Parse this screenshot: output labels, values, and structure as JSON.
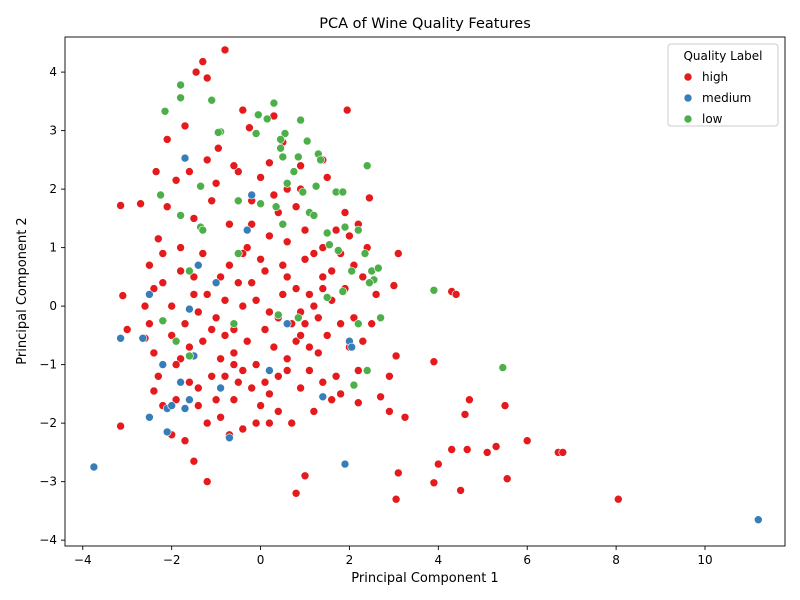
{
  "chart_data": {
    "type": "scatter",
    "title": "PCA of Wine Quality Features",
    "xlabel": "Principal Component 1",
    "ylabel": "Principal Component 2",
    "xlim": [
      -4.4,
      11.8
    ],
    "ylim": [
      -4.1,
      4.6
    ],
    "xticks": [
      -4,
      -2,
      0,
      2,
      4,
      6,
      8,
      10
    ],
    "yticks": [
      -4,
      -3,
      -2,
      -1,
      0,
      1,
      2,
      3,
      4
    ],
    "grid": false,
    "legend": {
      "title": "Quality Label",
      "placement": "top-right",
      "entries": [
        "high",
        "medium",
        "low"
      ]
    },
    "series": [
      {
        "name": "high",
        "color": "#e41a1c",
        "points": [
          [
            -3.15,
            1.72
          ],
          [
            -2.7,
            1.75
          ],
          [
            -3.1,
            0.18
          ],
          [
            -3.0,
            -0.4
          ],
          [
            -2.6,
            -0.55
          ],
          [
            -3.15,
            -2.05
          ],
          [
            -2.5,
            0.7
          ],
          [
            -2.4,
            0.3
          ],
          [
            -2.3,
            1.15
          ],
          [
            -2.1,
            2.85
          ],
          [
            -2.35,
            2.3
          ],
          [
            -2.4,
            -1.45
          ],
          [
            -2.2,
            -1.7
          ],
          [
            -2.0,
            -2.2
          ],
          [
            -1.7,
            -2.3
          ],
          [
            -1.5,
            -2.65
          ],
          [
            -1.2,
            -3.0
          ],
          [
            -1.3,
            4.18
          ],
          [
            -1.45,
            4.0
          ],
          [
            -1.2,
            3.9
          ],
          [
            -0.8,
            4.38
          ],
          [
            -1.7,
            3.08
          ],
          [
            -0.4,
            3.35
          ],
          [
            -0.25,
            3.05
          ],
          [
            0.3,
            3.25
          ],
          [
            1.95,
            3.35
          ],
          [
            0.5,
            2.8
          ],
          [
            1.4,
            2.5
          ],
          [
            1.5,
            2.2
          ],
          [
            -1.9,
            2.15
          ],
          [
            -0.95,
            2.7
          ],
          [
            -0.5,
            2.3
          ],
          [
            0.2,
            2.45
          ],
          [
            0.9,
            2.4
          ],
          [
            2.45,
            1.85
          ],
          [
            3.1,
            0.9
          ],
          [
            3.0,
            0.35
          ],
          [
            2.5,
            -0.3
          ],
          [
            3.05,
            -0.85
          ],
          [
            2.9,
            -1.2
          ],
          [
            2.7,
            -1.55
          ],
          [
            2.9,
            -1.8
          ],
          [
            3.25,
            -1.9
          ],
          [
            2.2,
            -1.65
          ],
          [
            1.0,
            -2.9
          ],
          [
            0.8,
            -3.2
          ],
          [
            0.7,
            -2.0
          ],
          [
            3.05,
            -3.3
          ],
          [
            3.1,
            -2.85
          ],
          [
            3.9,
            -0.95
          ],
          [
            3.9,
            -3.02
          ],
          [
            4.0,
            -2.7
          ],
          [
            4.3,
            -2.45
          ],
          [
            4.5,
            -3.15
          ],
          [
            4.6,
            -1.85
          ],
          [
            4.65,
            -2.45
          ],
          [
            4.7,
            -1.6
          ],
          [
            5.1,
            -2.5
          ],
          [
            5.3,
            -2.4
          ],
          [
            5.5,
            -1.7
          ],
          [
            5.55,
            -2.95
          ],
          [
            6.0,
            -2.3
          ],
          [
            6.7,
            -2.5
          ],
          [
            6.8,
            -2.5
          ],
          [
            8.05,
            -3.3
          ],
          [
            4.3,
            0.25
          ],
          [
            4.4,
            0.2
          ],
          [
            -1.8,
            1.0
          ],
          [
            -1.5,
            0.5
          ],
          [
            -1.2,
            0.2
          ],
          [
            -1.0,
            -0.2
          ],
          [
            -0.8,
            -0.5
          ],
          [
            -0.6,
            -0.8
          ],
          [
            -0.4,
            -1.1
          ],
          [
            -0.2,
            -1.4
          ],
          [
            0.0,
            -1.7
          ],
          [
            0.2,
            -1.5
          ],
          [
            0.4,
            -1.2
          ],
          [
            0.6,
            -0.9
          ],
          [
            0.8,
            -0.6
          ],
          [
            1.0,
            -0.3
          ],
          [
            1.2,
            0.0
          ],
          [
            1.4,
            0.3
          ],
          [
            1.6,
            0.6
          ],
          [
            1.8,
            0.9
          ],
          [
            2.0,
            1.2
          ],
          [
            -2.0,
            -0.5
          ],
          [
            -1.8,
            -0.9
          ],
          [
            -1.6,
            -1.3
          ],
          [
            -1.4,
            -1.7
          ],
          [
            -1.2,
            -2.0
          ],
          [
            -1.0,
            -1.6
          ],
          [
            -0.8,
            -1.2
          ],
          [
            -0.6,
            -0.4
          ],
          [
            -0.4,
            0.0
          ],
          [
            -0.2,
            0.4
          ],
          [
            0.0,
            0.8
          ],
          [
            0.2,
            1.2
          ],
          [
            0.4,
            1.6
          ],
          [
            0.6,
            2.0
          ],
          [
            0.8,
            1.7
          ],
          [
            1.0,
            1.3
          ],
          [
            1.2,
            0.9
          ],
          [
            1.4,
            0.5
          ],
          [
            1.6,
            0.1
          ],
          [
            1.8,
            -0.3
          ],
          [
            2.0,
            -0.7
          ],
          [
            2.2,
            -1.1
          ],
          [
            -2.2,
            0.4
          ],
          [
            -2.0,
            0.0
          ],
          [
            -1.7,
            -0.3
          ],
          [
            -1.3,
            -0.6
          ],
          [
            -0.9,
            -0.9
          ],
          [
            -0.5,
            -1.3
          ],
          [
            -0.1,
            -1.0
          ],
          [
            0.3,
            -0.7
          ],
          [
            0.7,
            -0.3
          ],
          [
            1.1,
            0.2
          ],
          [
            1.5,
            -0.5
          ],
          [
            1.9,
            0.3
          ],
          [
            -1.5,
            1.5
          ],
          [
            -1.1,
            1.8
          ],
          [
            -0.7,
            1.4
          ],
          [
            -0.3,
            1.0
          ],
          [
            0.1,
            0.6
          ],
          [
            0.5,
            0.2
          ],
          [
            0.9,
            -0.1
          ],
          [
            1.3,
            -0.8
          ],
          [
            1.7,
            -1.2
          ],
          [
            2.1,
            -0.2
          ],
          [
            -2.4,
            -0.8
          ],
          [
            -1.9,
            -1.6
          ],
          [
            -1.4,
            -0.1
          ],
          [
            -0.9,
            0.5
          ],
          [
            -0.4,
            0.9
          ],
          [
            0.1,
            -0.4
          ],
          [
            0.6,
            0.5
          ],
          [
            1.1,
            -1.1
          ],
          [
            1.6,
            -1.6
          ],
          [
            2.1,
            0.7
          ],
          [
            2.4,
            1.0
          ],
          [
            2.6,
            0.2
          ],
          [
            2.3,
            -0.6
          ],
          [
            -2.6,
            0.0
          ],
          [
            -2.1,
            1.7
          ],
          [
            -1.6,
            2.3
          ],
          [
            -1.0,
            2.1
          ],
          [
            -0.2,
            1.8
          ],
          [
            0.6,
            1.1
          ],
          [
            1.4,
            1.0
          ],
          [
            1.9,
            1.6
          ],
          [
            2.2,
            1.4
          ],
          [
            -1.3,
            0.9
          ],
          [
            -0.7,
            0.7
          ],
          [
            -0.1,
            0.1
          ],
          [
            0.4,
            -0.2
          ],
          [
            0.9,
            -0.5
          ],
          [
            1.3,
            -0.2
          ],
          [
            -1.6,
            -0.7
          ],
          [
            -1.1,
            -1.2
          ],
          [
            -0.6,
            -1.6
          ],
          [
            -0.1,
            -2.0
          ],
          [
            0.4,
            -1.8
          ],
          [
            0.9,
            -1.4
          ],
          [
            1.4,
            -1.3
          ],
          [
            -2.3,
            -1.2
          ],
          [
            -1.9,
            -1.0
          ],
          [
            -1.4,
            -1.4
          ],
          [
            -0.9,
            -1.9
          ],
          [
            -0.4,
            -2.1
          ],
          [
            0.1,
            -1.3
          ],
          [
            0.6,
            -1.1
          ],
          [
            1.1,
            -0.7
          ],
          [
            -0.5,
            0.4
          ],
          [
            -0.8,
            0.1
          ],
          [
            -1.1,
            -0.4
          ],
          [
            0.2,
            -0.1
          ],
          [
            0.5,
            0.7
          ],
          [
            0.8,
            0.3
          ],
          [
            -0.3,
            -0.6
          ],
          [
            -0.6,
            -1.0
          ],
          [
            -1.5,
            0.2
          ],
          [
            -1.8,
            0.6
          ],
          [
            -2.2,
            0.9
          ],
          [
            -0.2,
            1.4
          ],
          [
            0.3,
            1.9
          ],
          [
            1.0,
            0.8
          ],
          [
            1.7,
            1.3
          ],
          [
            2.3,
            0.5
          ],
          [
            -2.5,
            -0.3
          ],
          [
            -0.7,
            -2.2
          ],
          [
            0.2,
            -2.0
          ],
          [
            1.2,
            -1.8
          ],
          [
            1.8,
            -1.5
          ],
          [
            -1.2,
            2.5
          ],
          [
            -0.6,
            2.4
          ],
          [
            0.0,
            2.2
          ],
          [
            0.9,
            2.0
          ]
        ]
      },
      {
        "name": "medium",
        "color": "#377eb8",
        "points": [
          [
            -3.75,
            -2.75
          ],
          [
            -3.15,
            -0.55
          ],
          [
            -2.65,
            -0.55
          ],
          [
            -2.5,
            0.2
          ],
          [
            -2.5,
            -1.9
          ],
          [
            -2.2,
            -1.0
          ],
          [
            -2.1,
            -1.75
          ],
          [
            -2.0,
            -1.7
          ],
          [
            -2.1,
            -2.15
          ],
          [
            -1.8,
            -1.3
          ],
          [
            -1.7,
            2.53
          ],
          [
            -1.7,
            -1.75
          ],
          [
            -1.6,
            -1.6
          ],
          [
            -1.5,
            -0.85
          ],
          [
            -1.4,
            0.7
          ],
          [
            -1.6,
            -0.05
          ],
          [
            -0.7,
            -2.25
          ],
          [
            -0.3,
            1.3
          ],
          [
            -0.2,
            1.9
          ],
          [
            0.6,
            -0.3
          ],
          [
            1.4,
            -1.55
          ],
          [
            1.9,
            -2.7
          ],
          [
            2.0,
            -0.6
          ],
          [
            2.05,
            -0.7
          ],
          [
            11.2,
            -3.65
          ],
          [
            -0.9,
            -1.4
          ],
          [
            0.2,
            -1.1
          ],
          [
            -1.0,
            0.4
          ]
        ]
      },
      {
        "name": "low",
        "color": "#4daf4a",
        "points": [
          [
            -2.15,
            3.33
          ],
          [
            -1.8,
            3.56
          ],
          [
            -1.8,
            3.78
          ],
          [
            -1.1,
            3.52
          ],
          [
            -0.9,
            2.98
          ],
          [
            -0.95,
            2.97
          ],
          [
            -0.05,
            3.27
          ],
          [
            0.15,
            3.2
          ],
          [
            0.3,
            3.47
          ],
          [
            0.9,
            3.18
          ],
          [
            -0.1,
            2.95
          ],
          [
            0.55,
            2.95
          ],
          [
            0.45,
            2.85
          ],
          [
            0.45,
            2.7
          ],
          [
            0.5,
            2.55
          ],
          [
            0.85,
            2.55
          ],
          [
            1.05,
            2.82
          ],
          [
            1.3,
            2.6
          ],
          [
            1.35,
            2.5
          ],
          [
            1.25,
            2.05
          ],
          [
            1.7,
            1.95
          ],
          [
            1.85,
            1.95
          ],
          [
            2.4,
            2.4
          ],
          [
            1.9,
            1.35
          ],
          [
            2.2,
            1.3
          ],
          [
            2.35,
            0.9
          ],
          [
            2.5,
            0.6
          ],
          [
            2.55,
            0.45
          ],
          [
            2.65,
            0.65
          ],
          [
            2.45,
            0.4
          ],
          [
            2.7,
            -0.2
          ],
          [
            3.9,
            0.27
          ],
          [
            5.45,
            -1.05
          ],
          [
            2.4,
            -1.1
          ],
          [
            2.1,
            -1.35
          ],
          [
            -1.6,
            0.6
          ],
          [
            -2.2,
            -0.25
          ],
          [
            -2.25,
            1.9
          ],
          [
            -1.8,
            1.55
          ],
          [
            -1.35,
            2.05
          ],
          [
            -1.35,
            1.35
          ],
          [
            -0.5,
            1.8
          ],
          [
            0.0,
            1.75
          ],
          [
            0.35,
            1.7
          ],
          [
            0.6,
            2.1
          ],
          [
            0.75,
            2.3
          ],
          [
            0.95,
            1.95
          ],
          [
            1.1,
            1.6
          ],
          [
            1.2,
            1.55
          ],
          [
            1.5,
            1.25
          ],
          [
            1.55,
            1.05
          ],
          [
            1.75,
            0.95
          ],
          [
            1.5,
            0.15
          ],
          [
            1.85,
            0.25
          ],
          [
            2.05,
            0.6
          ],
          [
            2.2,
            -0.3
          ],
          [
            0.85,
            -0.2
          ],
          [
            0.4,
            -0.15
          ],
          [
            -0.6,
            -0.3
          ],
          [
            -1.3,
            1.3
          ],
          [
            -1.6,
            -0.85
          ],
          [
            -1.9,
            -0.6
          ],
          [
            -0.5,
            0.9
          ],
          [
            0.5,
            1.4
          ]
        ]
      }
    ]
  }
}
